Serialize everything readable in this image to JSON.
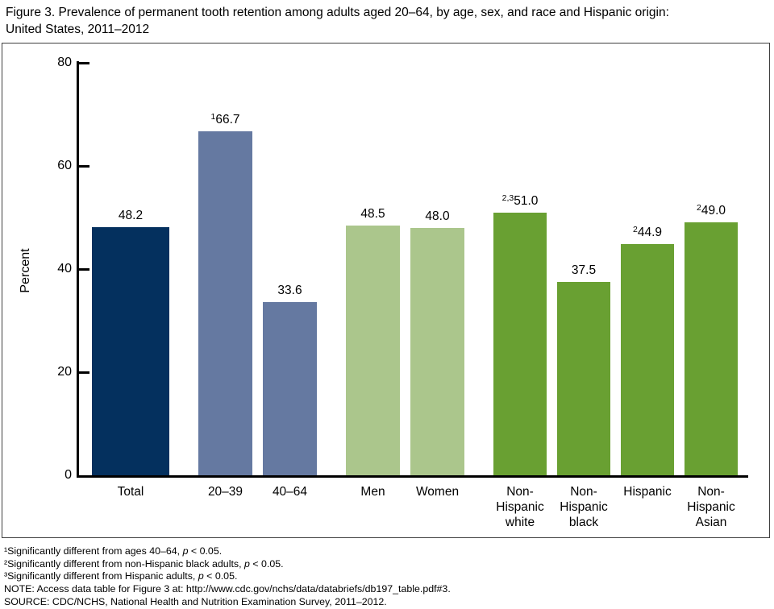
{
  "title": "Figure 3. Prevalence of permanent tooth retention among adults aged 20–64, by age, sex, and race and Hispanic origin:\nUnited States, 2011–2012",
  "chart_data": {
    "type": "bar",
    "ylabel": "Percent",
    "xlabel": "",
    "ylim": [
      0,
      80
    ],
    "yticks": [
      0,
      20,
      40,
      60,
      80
    ],
    "grid": false,
    "legend": "none",
    "colors": {
      "total": "#04305e",
      "age": "#6579a1",
      "sex": "#abc68c",
      "race": "#69a032"
    },
    "bars": [
      {
        "label": "Total",
        "value": 48.2,
        "sup": "",
        "group": "total",
        "color": "#04305e"
      },
      {
        "label": "20–39",
        "value": 66.7,
        "sup": "1",
        "group": "age",
        "color": "#6579a1"
      },
      {
        "label": "40–64",
        "value": 33.6,
        "sup": "",
        "group": "age",
        "color": "#6579a1"
      },
      {
        "label": "Men",
        "value": 48.5,
        "sup": "",
        "group": "sex",
        "color": "#abc68c"
      },
      {
        "label": "Women",
        "value": 48.0,
        "sup": "",
        "group": "sex",
        "color": "#abc68c"
      },
      {
        "label": "Non-\nHispanic\nwhite",
        "value": 51.0,
        "sup": "2,3",
        "group": "race",
        "color": "#69a032"
      },
      {
        "label": "Non-\nHispanic\nblack",
        "value": 37.5,
        "sup": "",
        "group": "race",
        "color": "#69a032"
      },
      {
        "label": "Hispanic",
        "value": 44.9,
        "sup": "2",
        "group": "race",
        "color": "#69a032"
      },
      {
        "label": "Non-\nHispanic\nAsian",
        "value": 49.0,
        "sup": "2",
        "group": "race",
        "color": "#69a032"
      }
    ]
  },
  "footnotes": [
    {
      "pre": "¹Significantly different from ages 40–64, ",
      "italic": "p",
      "post": " < 0.05."
    },
    {
      "pre": "²Significantly different from non-Hispanic black adults, ",
      "italic": "p",
      "post": " < 0.05."
    },
    {
      "pre": "³Significantly different from Hispanic adults, ",
      "italic": "p",
      "post": " < 0.05."
    },
    {
      "pre": "NOTE: Access data table for Figure 3 at: http://www.cdc.gov/nchs/data/databriefs/db197_table.pdf#3.",
      "italic": "",
      "post": ""
    },
    {
      "pre": "SOURCE: CDC/NCHS, National Health and Nutrition Examination Survey, 2011–2012.",
      "italic": "",
      "post": ""
    }
  ]
}
